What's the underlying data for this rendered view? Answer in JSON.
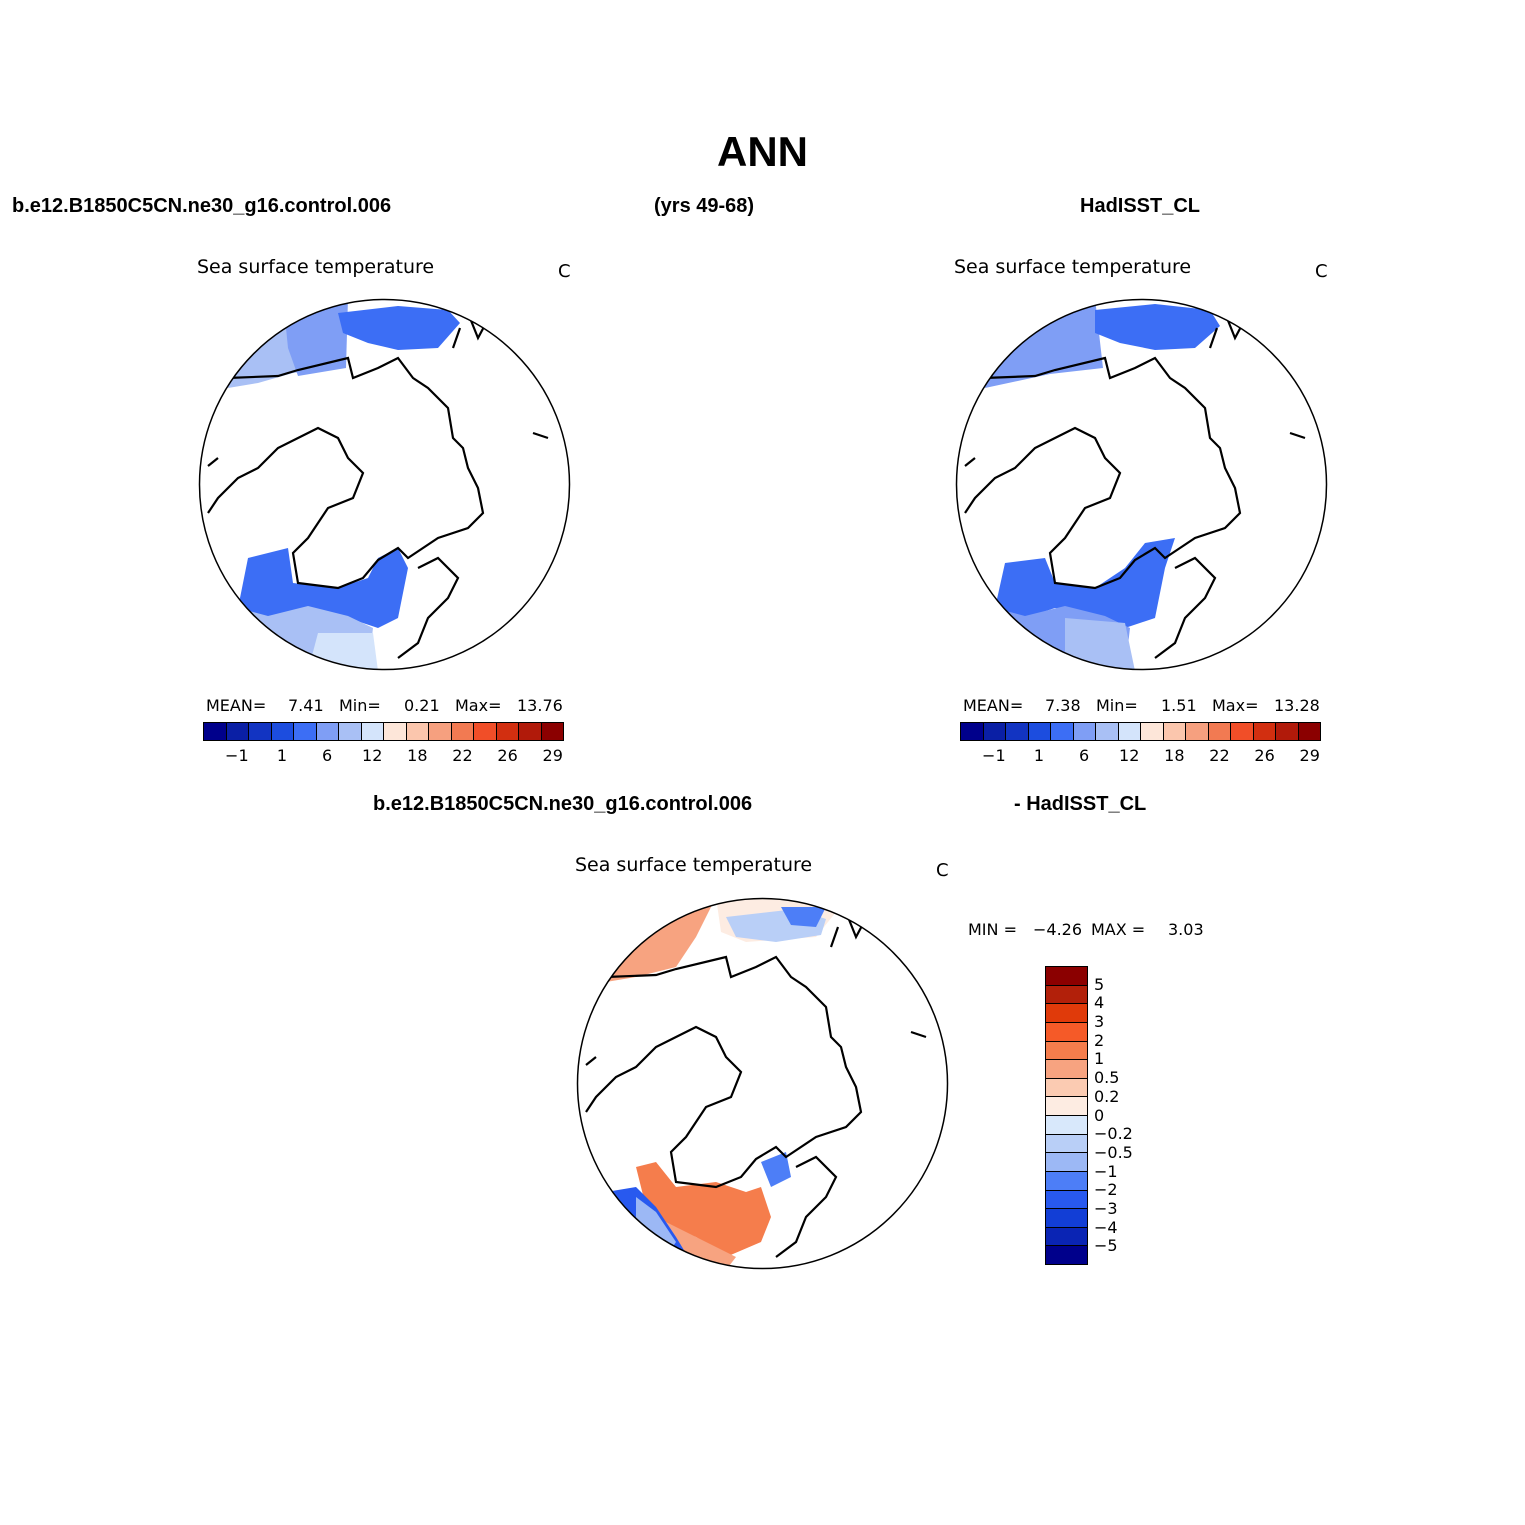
{
  "header": {
    "title": "ANN",
    "case_name": "b.e12.B1850C5CN.ne30_g16.control.006",
    "years": "(yrs 49-68)",
    "obs_name": "HadISST_CL"
  },
  "panels": {
    "model": {
      "title": "Sea surface temperature",
      "units": "C",
      "stats": {
        "mean_label": "MEAN=",
        "mean": "7.41",
        "min_label": "Min=",
        "min": "0.21",
        "max_label": "Max=",
        "max": "13.76"
      },
      "colorbar": {
        "colors": [
          "#00008b",
          "#0a1fa5",
          "#1234c2",
          "#1c4ddf",
          "#3c6ef5",
          "#7f9ef5",
          "#a9c0f5",
          "#d4e4fb",
          "#fde6d9",
          "#fbc6ad",
          "#f6a07f",
          "#f27a52",
          "#f14e28",
          "#d22f10",
          "#b11a0a",
          "#8b0000"
        ],
        "labels": [
          "−1",
          "1",
          "6",
          "12",
          "18",
          "22",
          "26",
          "29"
        ]
      }
    },
    "obs": {
      "title": "Sea surface temperature",
      "units": "C",
      "stats": {
        "mean_label": "MEAN=",
        "mean": "7.38",
        "min_label": "Min=",
        "min": "1.51",
        "max_label": "Max=",
        "max": "13.28"
      },
      "colorbar": {
        "colors": [
          "#00008b",
          "#0a1fa5",
          "#1234c2",
          "#1c4ddf",
          "#3c6ef5",
          "#7f9ef5",
          "#a9c0f5",
          "#d4e4fb",
          "#fde6d9",
          "#fbc6ad",
          "#f6a07f",
          "#f27a52",
          "#f14e28",
          "#d22f10",
          "#b11a0a",
          "#8b0000"
        ],
        "labels": [
          "−1",
          "1",
          "6",
          "12",
          "18",
          "22",
          "26",
          "29"
        ]
      }
    },
    "diff": {
      "case_label": "b.e12.B1850C5CN.ne30_g16.control.006",
      "obs_label": "- HadISST_CL",
      "title": "Sea surface temperature",
      "units": "C",
      "stats": {
        "min_label": "MIN =",
        "min": "−4.26",
        "max_label": "MAX =",
        "max": "3.03"
      },
      "colorbar": {
        "colors": [
          "#8b0000",
          "#b2200a",
          "#e03a0a",
          "#f55a28",
          "#f57d4c",
          "#f7a380",
          "#fbcbb2",
          "#fdece2",
          "#d8e8fb",
          "#b9cff7",
          "#9cb8f5",
          "#4d7ef7",
          "#2859ef",
          "#123ed6",
          "#0a24b4",
          "#00008b"
        ],
        "labels": [
          "5",
          "4",
          "3",
          "2",
          "1",
          "0.5",
          "0.2",
          "0",
          "−0.2",
          "−0.5",
          "−1",
          "−2",
          "−3",
          "−4",
          "−5"
        ]
      }
    }
  }
}
